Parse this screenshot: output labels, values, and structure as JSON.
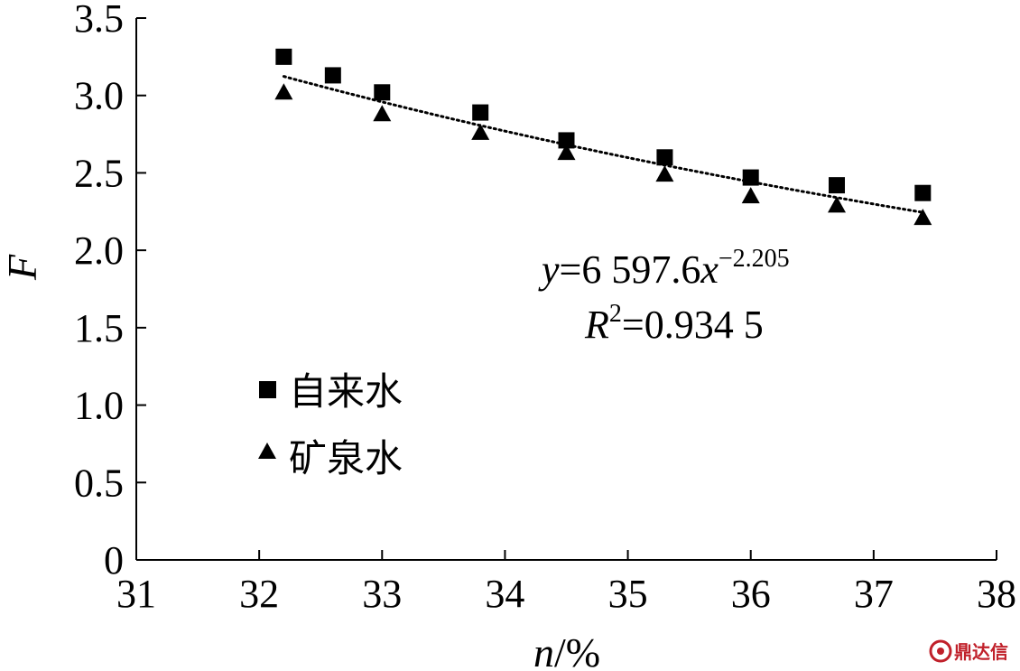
{
  "chart_data": {
    "type": "scatter",
    "xlabel": "n/%",
    "ylabel": "F",
    "xlim": [
      31,
      38
    ],
    "ylim": [
      0,
      3.5
    ],
    "xticks": [
      "31",
      "32",
      "33",
      "34",
      "35",
      "36",
      "37",
      "38"
    ],
    "yticks": [
      "0",
      "0.5",
      "1.0",
      "1.5",
      "2.0",
      "2.5",
      "3.0",
      "3.5"
    ],
    "grid": false,
    "legend_position": "left",
    "series": [
      {
        "name": "自来水",
        "marker": "square",
        "x": [
          32.2,
          32.6,
          33.0,
          33.8,
          34.5,
          35.3,
          36.0,
          36.7,
          37.4
        ],
        "y": [
          3.25,
          3.13,
          3.02,
          2.89,
          2.71,
          2.6,
          2.47,
          2.42,
          2.37
        ]
      },
      {
        "name": "矿泉水",
        "marker": "triangle",
        "x": [
          32.2,
          33.0,
          33.8,
          34.5,
          35.3,
          36.0,
          36.7,
          37.4
        ],
        "y": [
          3.02,
          2.88,
          2.76,
          2.63,
          2.49,
          2.35,
          2.29,
          2.21
        ]
      }
    ],
    "trendline": {
      "style": "dotted",
      "coefficient": 6597.6,
      "exponent": -2.205,
      "x_range": [
        32.2,
        37.4
      ]
    },
    "annotations": {
      "equation": {
        "y_var": "y",
        "equals_coef": "=6 597.6",
        "x_var": "x",
        "exponent": "−2.205"
      },
      "r_squared": {
        "r_var": "R",
        "sup": "2",
        "value": "=0.934 5"
      }
    }
  },
  "watermark": {
    "text": "鼎达信",
    "color": "#c0202a"
  }
}
